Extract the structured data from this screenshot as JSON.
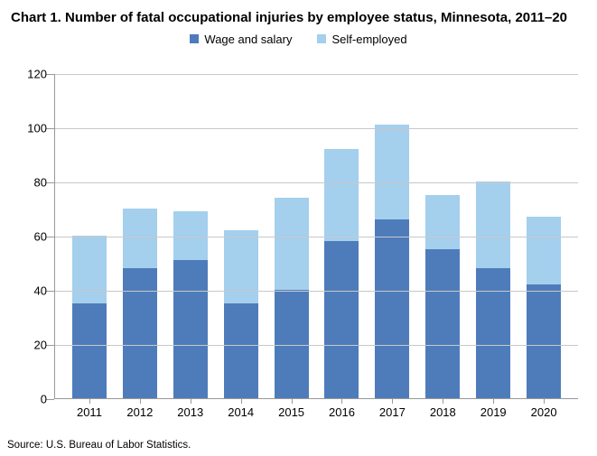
{
  "title": "Chart 1. Number of fatal occupational injuries by employee status, Minnesota, 2011–20",
  "source": "Source: U.S. Bureau of Labor Statistics.",
  "chart": {
    "type": "stacked-bar",
    "background_color": "#ffffff",
    "grid_color": "#c8c8c8",
    "axis_color": "#999999",
    "text_color": "#000000",
    "y": {
      "min": 0,
      "max": 120,
      "step": 20
    },
    "series": [
      {
        "key": "wage",
        "label": "Wage and salary",
        "color": "#4e7cba"
      },
      {
        "key": "self",
        "label": "Self-employed",
        "color": "#a4cfed"
      }
    ],
    "categories": [
      "2011",
      "2012",
      "2013",
      "2014",
      "2015",
      "2016",
      "2017",
      "2018",
      "2019",
      "2020"
    ],
    "data": {
      "wage": [
        35,
        48,
        51,
        35,
        40,
        58,
        66,
        55,
        48,
        42
      ],
      "self": [
        25,
        22,
        18,
        27,
        34,
        34,
        35,
        20,
        32,
        25
      ]
    }
  }
}
